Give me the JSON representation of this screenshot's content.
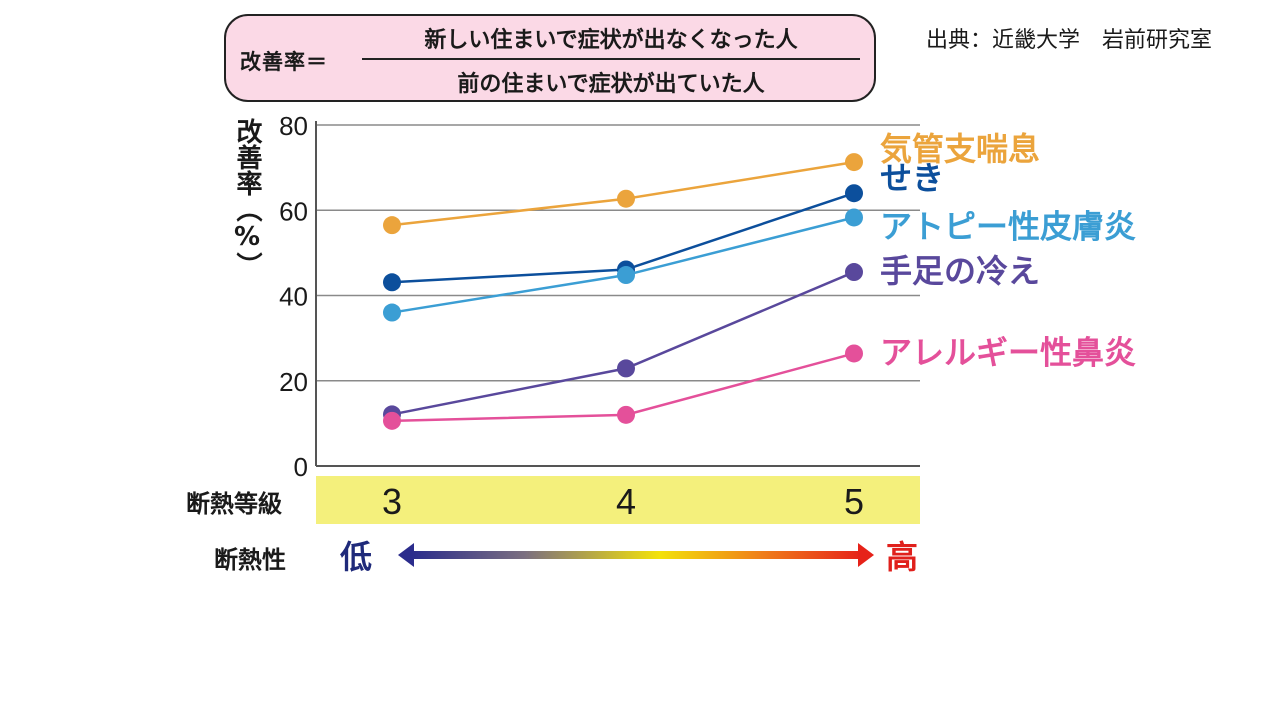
{
  "formula": {
    "lhs": "改善率＝",
    "numerator": "新しい住まいで症状が出なくなった人",
    "denominator": "前の住まいで症状が出ていた人"
  },
  "source": "出典：近畿大学　岩前研究室",
  "insulation_grade_label": "断熱等級",
  "insulation_performance_label": "断熱性",
  "low_label": "低",
  "high_label": "高",
  "chart_data": {
    "type": "line",
    "ylabel": "改善率（%）",
    "xlabel": "断熱等級",
    "ylim": [
      0,
      80
    ],
    "yticks": [
      0,
      20,
      40,
      60,
      80
    ],
    "categories": [
      "3",
      "4",
      "5"
    ],
    "grid": true,
    "legend": "right",
    "series": [
      {
        "name": "気管支喘息",
        "color": "#eba43c",
        "values": [
          56.5,
          62.7,
          71.3
        ]
      },
      {
        "name": "せき",
        "color": "#0c4f9c",
        "values": [
          43.1,
          46.1,
          64.0
        ]
      },
      {
        "name": "アトピー性皮膚炎",
        "color": "#3b9ed4",
        "values": [
          36.0,
          44.8,
          58.3
        ]
      },
      {
        "name": "手足の冷え",
        "color": "#59489c",
        "values": [
          12.1,
          22.9,
          45.5
        ]
      },
      {
        "name": "アレルギー性鼻炎",
        "color": "#e4509a",
        "values": [
          10.6,
          12.0,
          26.4
        ]
      }
    ]
  }
}
